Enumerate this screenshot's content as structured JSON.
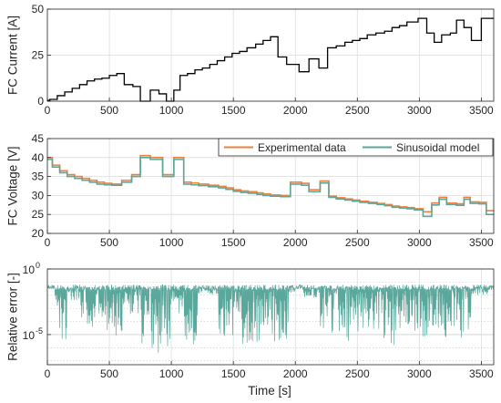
{
  "chart_data": [
    {
      "type": "line",
      "ylabel": "FC Current [A]",
      "xlabel": "",
      "xlim": [
        0,
        3600
      ],
      "ylim": [
        0,
        50
      ],
      "xticks": [
        0,
        500,
        1000,
        1500,
        2000,
        2500,
        3000,
        3500
      ],
      "yticks": [
        0,
        25,
        50
      ],
      "grid": true,
      "color": "#000000",
      "series": [
        {
          "step": true,
          "x": [
            0,
            20,
            80,
            140,
            200,
            260,
            320,
            380,
            440,
            500,
            560,
            620,
            690,
            750,
            830,
            900,
            960,
            1020,
            1070,
            1130,
            1190,
            1250,
            1310,
            1370,
            1430,
            1490,
            1550,
            1610,
            1680,
            1740,
            1800,
            1860,
            1930,
            2030,
            2110,
            2190,
            2260,
            2330,
            2400,
            2460,
            2520,
            2580,
            2650,
            2720,
            2780,
            2840,
            2900,
            2990,
            3060,
            3120,
            3180,
            3250,
            3300,
            3360,
            3420,
            3500,
            3560,
            3600
          ],
          "y": [
            0.5,
            1,
            3,
            5,
            7,
            9,
            11,
            12,
            12.5,
            14,
            15,
            9,
            8,
            0,
            6,
            4,
            0,
            6,
            14,
            15,
            17,
            18,
            20,
            22,
            24,
            26,
            27,
            29,
            31,
            33,
            35,
            24,
            20,
            16,
            23,
            18,
            29,
            30,
            32,
            33,
            34,
            36,
            37,
            38,
            40,
            41,
            43,
            45,
            37,
            32,
            36,
            37,
            44,
            40,
            33,
            45,
            45,
            45
          ]
        }
      ]
    },
    {
      "type": "line",
      "ylabel": "FC Voltage [V]",
      "xlabel": "",
      "xlim": [
        0,
        3600
      ],
      "ylim": [
        20,
        45
      ],
      "xticks": [
        0,
        500,
        1000,
        1500,
        2000,
        2500,
        3000,
        3500
      ],
      "yticks": [
        20,
        25,
        30,
        35,
        40,
        45
      ],
      "grid": true,
      "legend_position": "top-right",
      "series": [
        {
          "name": "Experimental data",
          "color": "#f07f3c",
          "step": true,
          "x": [
            0,
            40,
            100,
            160,
            220,
            280,
            340,
            400,
            460,
            520,
            600,
            680,
            750,
            830,
            930,
            1020,
            1100,
            1160,
            1220,
            1300,
            1380,
            1440,
            1500,
            1560,
            1620,
            1690,
            1740,
            1800,
            1880,
            1960,
            2050,
            2110,
            2200,
            2270,
            2330,
            2400,
            2460,
            2520,
            2590,
            2660,
            2720,
            2780,
            2840,
            2900,
            2960,
            3030,
            3100,
            3160,
            3220,
            3300,
            3360,
            3410,
            3480,
            3540,
            3600
          ],
          "y": [
            40,
            38,
            36.5,
            35.5,
            35,
            34.5,
            34,
            33.5,
            33.2,
            33,
            34,
            35.5,
            40.5,
            40,
            35.5,
            40,
            33.5,
            33.3,
            33,
            32.7,
            32.4,
            32,
            31.5,
            31.2,
            31,
            30.7,
            30.4,
            30.1,
            30,
            33.5,
            33.2,
            31.5,
            33.8,
            29.8,
            29.4,
            29.1,
            28.8,
            28.5,
            28.2,
            27.9,
            27.6,
            27.2,
            27,
            26.8,
            26.5,
            25.7,
            28,
            29.5,
            28,
            27.8,
            29.5,
            28.3,
            28.2,
            26,
            26
          ]
        },
        {
          "name": "Sinusoidal model",
          "color": "#5aa79b",
          "step": true,
          "x": [
            0,
            40,
            100,
            160,
            220,
            280,
            340,
            400,
            460,
            520,
            600,
            680,
            750,
            830,
            930,
            1020,
            1100,
            1160,
            1220,
            1300,
            1380,
            1440,
            1500,
            1560,
            1620,
            1690,
            1740,
            1800,
            1880,
            1960,
            2050,
            2110,
            2200,
            2270,
            2330,
            2400,
            2460,
            2520,
            2590,
            2660,
            2720,
            2780,
            2840,
            2900,
            2960,
            3030,
            3100,
            3160,
            3220,
            3300,
            3360,
            3410,
            3480,
            3540,
            3600
          ],
          "y": [
            39.5,
            37.5,
            36,
            35,
            34.5,
            34,
            33.5,
            33,
            32.8,
            32.7,
            33.5,
            35,
            40,
            39.5,
            35,
            39.5,
            33,
            32.8,
            32.6,
            32.3,
            32,
            31.6,
            31.1,
            30.8,
            30.6,
            30.3,
            30,
            29.8,
            29.7,
            33,
            32.7,
            31,
            33.3,
            29.5,
            29.1,
            28.8,
            28.5,
            28.2,
            27.9,
            27.6,
            27.3,
            26.9,
            26.7,
            26.5,
            26.2,
            24.5,
            27.5,
            29,
            27.6,
            27.4,
            29,
            27.9,
            27.8,
            25,
            25
          ]
        }
      ]
    },
    {
      "type": "line",
      "ylabel": "Relative error [-]",
      "xlabel": "Time [s]",
      "xlim": [
        0,
        3600
      ],
      "ylim_log10": [
        -7.3,
        0
      ],
      "yscale": "log",
      "xticks": [
        0,
        500,
        1000,
        1500,
        2000,
        2500,
        3000,
        3500
      ],
      "yticks_log10": [
        0,
        -5
      ],
      "ytick_labels": [
        "10",
        "10"
      ],
      "ytick_exponents": [
        "0",
        "-5"
      ],
      "grid": true,
      "color": "#5aa79b",
      "series": [
        {
          "x": [
            0,
            60,
            110,
            160,
            250,
            330,
            420,
            520,
            620,
            700,
            760,
            830,
            880,
            930,
            1000,
            1060,
            1120,
            1220,
            1280,
            1380,
            1420,
            1500,
            1560,
            1640,
            1720,
            1800,
            1860,
            1950,
            2000,
            2060,
            2100,
            2200,
            2280,
            2360,
            2420,
            2460,
            2520,
            2580,
            2640,
            2700,
            2740,
            2800,
            2850,
            2900,
            2950,
            3000,
            3020,
            3080,
            3150,
            3200,
            3260,
            3300,
            3380,
            3420,
            3500,
            3560,
            3600
          ],
          "y_log10": [
            -1.2,
            -1.5,
            -5.5,
            -2.5,
            -1.3,
            -4.5,
            -1.4,
            -5.2,
            -1.3,
            -3.5,
            -1.4,
            -6.2,
            -2.0,
            -6.5,
            -2.5,
            -1.4,
            -5.8,
            -1.3,
            -2.0,
            -1.6,
            -5.2,
            -3.5,
            -1.5,
            -6.0,
            -4.5,
            -1.5,
            -5.8,
            -1.8,
            -1.0,
            -1.3,
            -2.2,
            -1.4,
            -5.0,
            -1.1,
            -5.8,
            -2.5,
            -4.8,
            -2.0,
            -4.6,
            -1.6,
            -6.0,
            -2.2,
            -4.8,
            -1.5,
            -5.0,
            -0.8,
            -5.6,
            -1.3,
            -4.5,
            -1.6,
            -5.5,
            -2.1,
            -5.4,
            -1.0,
            -2.0,
            -1.2,
            -1.3
          ]
        }
      ]
    }
  ]
}
